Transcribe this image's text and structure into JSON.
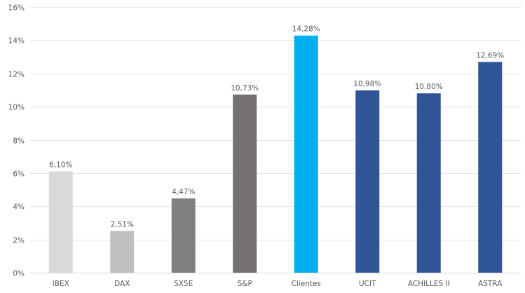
{
  "chart_data": {
    "type": "bar",
    "title": "",
    "xlabel": "",
    "ylabel": "",
    "ylim": [
      0,
      16
    ],
    "y_ticks": [
      0,
      2,
      4,
      6,
      8,
      10,
      12,
      14,
      16
    ],
    "y_tick_labels": [
      "0%",
      "2%",
      "4%",
      "6%",
      "8%",
      "10%",
      "12%",
      "14%",
      "16%"
    ],
    "grid": true,
    "legend": "none",
    "categories": [
      "IBEX",
      "DAX",
      "SX5E",
      "S&P",
      "Clientes",
      "UCIT",
      "ACHILLES II",
      "ASTRA"
    ],
    "values": [
      6.1,
      2.51,
      4.47,
      10.73,
      14.28,
      10.98,
      10.8,
      12.69
    ],
    "data_labels": [
      "6,10%",
      "2,51%",
      "4,47%",
      "10,73%",
      "14,28%",
      "10,98%",
      "10,80%",
      "12,69%"
    ],
    "colors": [
      "#d9d9d9",
      "#bfbfbf",
      "#808080",
      "#767171",
      "#00b0f0",
      "#2f5597",
      "#2f5597",
      "#2f5597"
    ]
  }
}
